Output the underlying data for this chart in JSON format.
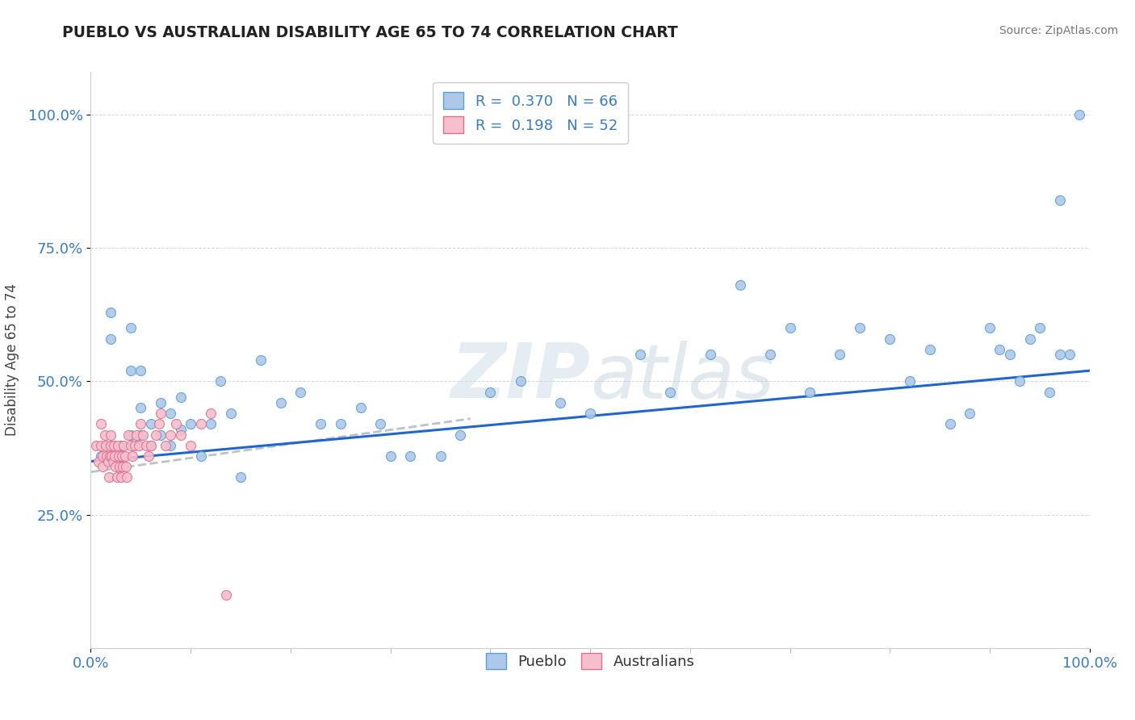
{
  "title": "PUEBLO VS AUSTRALIAN DISABILITY AGE 65 TO 74 CORRELATION CHART",
  "source_text": "Source: ZipAtlas.com",
  "ylabel": "Disability Age 65 to 74",
  "xlim": [
    0.0,
    1.0
  ],
  "ylim": [
    0.0,
    1.08
  ],
  "pueblo_R": 0.37,
  "pueblo_N": 66,
  "australian_R": 0.198,
  "australian_N": 52,
  "pueblo_color": "#adc8e8",
  "pueblo_edge_color": "#5a9fd4",
  "australian_color": "#f5bfcd",
  "australian_edge_color": "#e07090",
  "trend_pueblo_color": "#2266cc",
  "trend_australian_color": "#b0b8c0",
  "background_color": "#ffffff",
  "watermark_color": "#d0dde8",
  "xtick_labels": [
    "0.0%",
    "100.0%"
  ],
  "ytick_labels": [
    "25.0%",
    "50.0%",
    "75.0%",
    "100.0%"
  ],
  "ytick_values": [
    0.25,
    0.5,
    0.75,
    1.0
  ],
  "pueblo_x": [
    0.01,
    0.02,
    0.02,
    0.03,
    0.03,
    0.03,
    0.04,
    0.04,
    0.04,
    0.05,
    0.05,
    0.05,
    0.06,
    0.06,
    0.07,
    0.07,
    0.08,
    0.08,
    0.09,
    0.09,
    0.1,
    0.11,
    0.12,
    0.13,
    0.14,
    0.15,
    0.17,
    0.19,
    0.21,
    0.23,
    0.25,
    0.27,
    0.29,
    0.3,
    0.32,
    0.35,
    0.37,
    0.4,
    0.43,
    0.47,
    0.5,
    0.55,
    0.58,
    0.62,
    0.65,
    0.68,
    0.7,
    0.72,
    0.75,
    0.77,
    0.8,
    0.82,
    0.84,
    0.86,
    0.88,
    0.9,
    0.91,
    0.92,
    0.93,
    0.94,
    0.95,
    0.96,
    0.97,
    0.97,
    0.98,
    0.99
  ],
  "pueblo_y": [
    0.36,
    0.63,
    0.58,
    0.38,
    0.36,
    0.34,
    0.6,
    0.52,
    0.4,
    0.52,
    0.45,
    0.4,
    0.42,
    0.38,
    0.46,
    0.4,
    0.44,
    0.38,
    0.47,
    0.41,
    0.42,
    0.36,
    0.42,
    0.5,
    0.44,
    0.32,
    0.54,
    0.46,
    0.48,
    0.42,
    0.42,
    0.45,
    0.42,
    0.36,
    0.36,
    0.36,
    0.4,
    0.48,
    0.5,
    0.46,
    0.44,
    0.55,
    0.48,
    0.55,
    0.68,
    0.55,
    0.6,
    0.48,
    0.55,
    0.6,
    0.58,
    0.5,
    0.56,
    0.42,
    0.44,
    0.6,
    0.56,
    0.55,
    0.5,
    0.58,
    0.6,
    0.48,
    0.55,
    0.84,
    0.55,
    1.0
  ],
  "australian_x": [
    0.005,
    0.008,
    0.01,
    0.01,
    0.012,
    0.012,
    0.014,
    0.015,
    0.016,
    0.017,
    0.018,
    0.019,
    0.02,
    0.02,
    0.021,
    0.022,
    0.023,
    0.024,
    0.025,
    0.026,
    0.027,
    0.028,
    0.029,
    0.03,
    0.031,
    0.032,
    0.033,
    0.034,
    0.035,
    0.036,
    0.038,
    0.04,
    0.042,
    0.044,
    0.046,
    0.048,
    0.05,
    0.052,
    0.055,
    0.058,
    0.06,
    0.065,
    0.068,
    0.07,
    0.075,
    0.08,
    0.085,
    0.09,
    0.1,
    0.11,
    0.12,
    0.135
  ],
  "australian_y": [
    0.38,
    0.35,
    0.42,
    0.38,
    0.36,
    0.34,
    0.4,
    0.38,
    0.36,
    0.35,
    0.32,
    0.36,
    0.4,
    0.38,
    0.36,
    0.35,
    0.38,
    0.36,
    0.34,
    0.32,
    0.38,
    0.36,
    0.34,
    0.32,
    0.36,
    0.34,
    0.38,
    0.36,
    0.34,
    0.32,
    0.4,
    0.38,
    0.36,
    0.38,
    0.4,
    0.38,
    0.42,
    0.4,
    0.38,
    0.36,
    0.38,
    0.4,
    0.42,
    0.44,
    0.38,
    0.4,
    0.42,
    0.4,
    0.38,
    0.42,
    0.44,
    0.1
  ],
  "pueblo_trend_x": [
    0.0,
    1.0
  ],
  "pueblo_trend_y": [
    0.35,
    0.52
  ],
  "australian_trend_x": [
    0.0,
    0.38
  ],
  "australian_trend_y": [
    0.33,
    0.43
  ]
}
